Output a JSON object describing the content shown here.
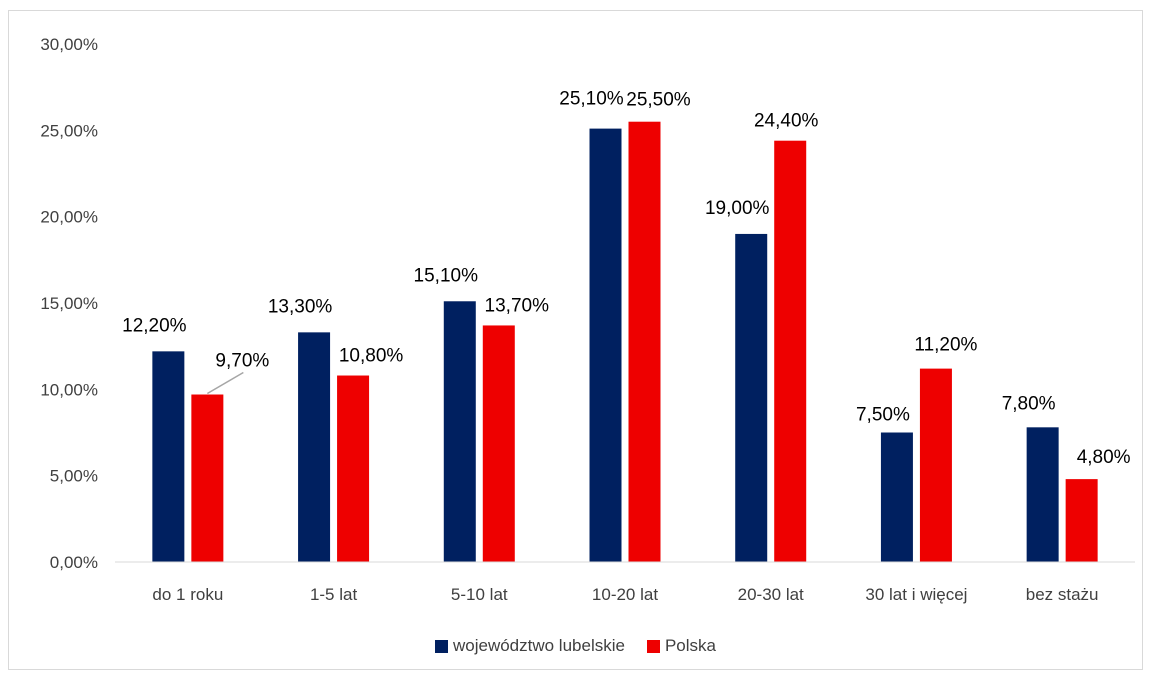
{
  "chart_data": {
    "type": "bar",
    "title": "",
    "xlabel": "",
    "ylabel": "",
    "ylim": [
      0,
      30
    ],
    "y_ticks": [
      "0,00%",
      "5,00%",
      "10,00%",
      "15,00%",
      "20,00%",
      "25,00%",
      "30,00%"
    ],
    "grid": false,
    "legend_position": "bottom",
    "categories": [
      "do 1 roku",
      "1-5 lat",
      "5-10 lat",
      "10-20 lat",
      "20-30 lat",
      "30 lat i więcej",
      "bez stażu"
    ],
    "series": [
      {
        "name": "województwo lubelskie",
        "color": "#002060",
        "values": [
          12.2,
          13.3,
          15.1,
          25.1,
          19.0,
          7.5,
          7.8
        ],
        "labels": [
          "12,20%",
          "13,30%",
          "15,10%",
          "25,10%",
          "19,00%",
          "7,50%",
          "7,80%"
        ]
      },
      {
        "name": "Polska",
        "color": "#EE0000",
        "values": [
          9.7,
          10.8,
          13.7,
          25.5,
          24.4,
          11.2,
          4.8
        ],
        "labels": [
          "9,70%",
          "10,80%",
          "13,70%",
          "25,50%",
          "24,40%",
          "11,20%",
          "4,80%"
        ]
      }
    ]
  }
}
